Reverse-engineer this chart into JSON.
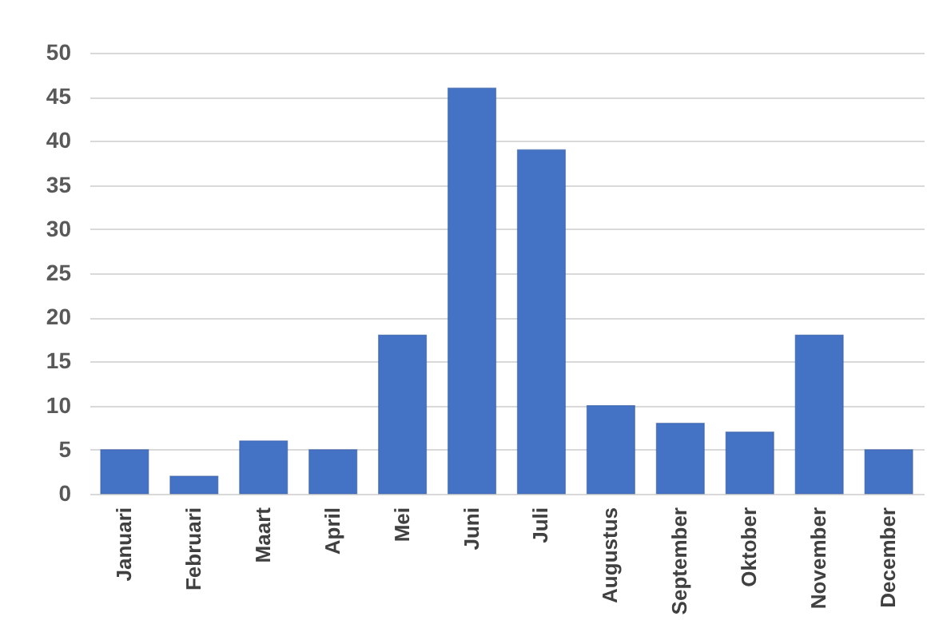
{
  "chart_data": {
    "type": "bar",
    "categories": [
      "Januari",
      "Februari",
      "Maart",
      "April",
      "Mei",
      "Juni",
      "Juli",
      "Augustus",
      "September",
      "Oktober",
      "November",
      "December"
    ],
    "values": [
      5,
      2,
      6,
      5,
      18,
      46,
      39,
      10,
      8,
      7,
      18,
      5
    ],
    "color": "#4472c4",
    "ylim": [
      0,
      50
    ],
    "yticks": [
      0,
      5,
      10,
      15,
      20,
      25,
      30,
      35,
      40,
      45,
      50
    ],
    "grid": "y"
  }
}
